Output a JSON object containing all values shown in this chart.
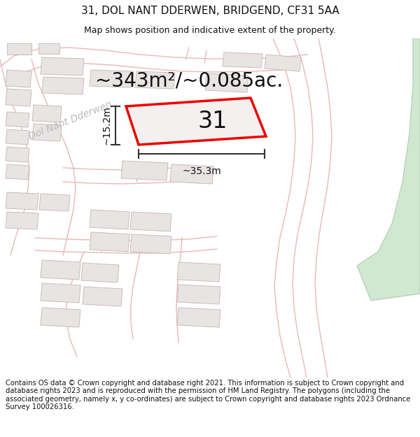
{
  "title_line1": "31, DOL NANT DDERWEN, BRIDGEND, CF31 5AA",
  "title_line2": "Map shows position and indicative extent of the property.",
  "area_text": "~343m²/~0.085ac.",
  "label_number": "31",
  "dim_width": "~35.3m",
  "dim_height": "~15.2m",
  "footer_text": "Contains OS data © Crown copyright and database right 2021. This information is subject to Crown copyright and database rights 2023 and is reproduced with the permission of HM Land Registry. The polygons (including the associated geometry, namely x, y co-ordinates) are subject to Crown copyright and database rights 2023 Ordnance Survey 100026316.",
  "bg": "#ffffff",
  "map_bg": "#f8f6f6",
  "road_color": "#e8b8b8",
  "building_face": "#e8e4e4",
  "building_edge": "#ccbbbb",
  "green_face": "#d0e8d0",
  "green_edge": "#b0ccb0",
  "plot_edge": "#ee0000",
  "plot_face": "#f5f0f0",
  "dim_color": "#333333",
  "street_color": "#bbbbbb",
  "title_fs": 11,
  "sub_fs": 9,
  "area_fs": 20,
  "num_fs": 24,
  "dim_fs": 10,
  "footer_fs": 7.2,
  "street_fs": 10
}
